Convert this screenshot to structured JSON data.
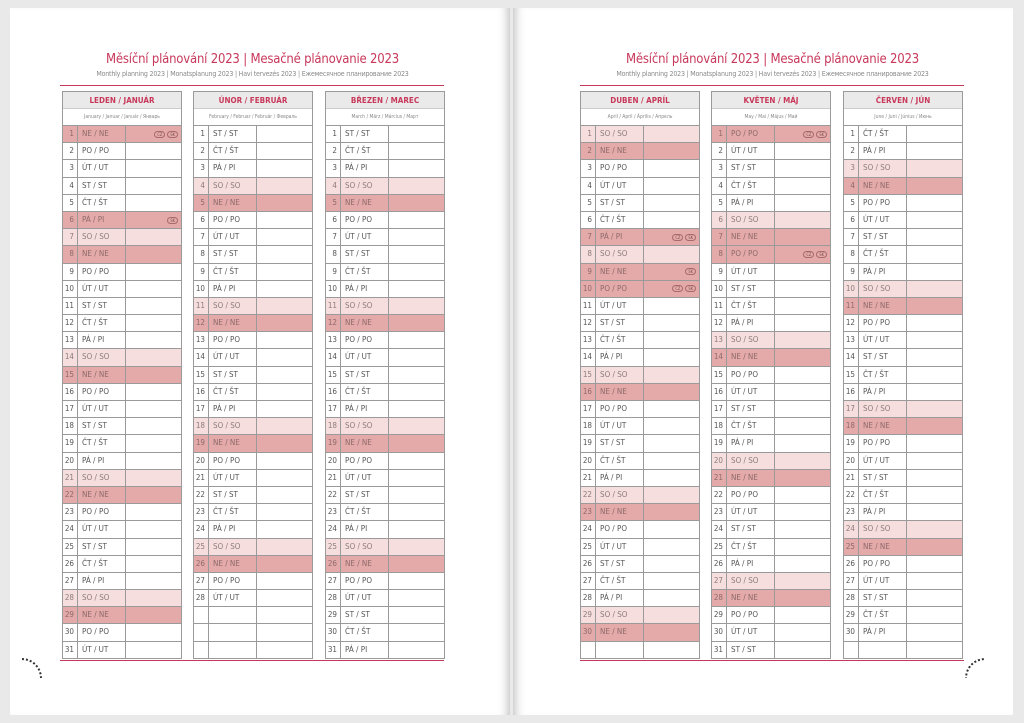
{
  "title": "Měsíční plánování 2023 | Mesačné plánovanie 2023",
  "subtitle": "Monthly planning 2023 | Monatsplanung 2023 | Havi tervezés 2023 | Ежемесячное планирование 2023",
  "colors": {
    "accent": "#c8385a",
    "saturday": "#f6dede",
    "sunday_holiday": "#e4a9a9"
  },
  "months": [
    {
      "name": "LEDEN / JANUÁR",
      "sub": "January / Januar / Január / Январь",
      "rows": [
        [
          1,
          "NE / NE",
          2,
          [
            "CZ",
            "SK"
          ]
        ],
        [
          2,
          "PO / PO",
          0
        ],
        [
          3,
          "ÚT / UT",
          0
        ],
        [
          4,
          "ST / ST",
          0
        ],
        [
          5,
          "ČT / ŠT",
          0
        ],
        [
          6,
          "PÁ / PI",
          2,
          [
            "SK"
          ]
        ],
        [
          7,
          "SO / SO",
          1
        ],
        [
          8,
          "NE / NE",
          2
        ],
        [
          9,
          "PO / PO",
          0
        ],
        [
          10,
          "ÚT / UT",
          0
        ],
        [
          11,
          "ST / ST",
          0
        ],
        [
          12,
          "ČT / ŠT",
          0
        ],
        [
          13,
          "PÁ / PI",
          0
        ],
        [
          14,
          "SO / SO",
          1
        ],
        [
          15,
          "NE / NE",
          2
        ],
        [
          16,
          "PO / PO",
          0
        ],
        [
          17,
          "ÚT / UT",
          0
        ],
        [
          18,
          "ST / ST",
          0
        ],
        [
          19,
          "ČT / ŠT",
          0
        ],
        [
          20,
          "PÁ / PI",
          0
        ],
        [
          21,
          "SO / SO",
          1
        ],
        [
          22,
          "NE / NE",
          2
        ],
        [
          23,
          "PO / PO",
          0
        ],
        [
          24,
          "ÚT / UT",
          0
        ],
        [
          25,
          "ST / ST",
          0
        ],
        [
          26,
          "ČT / ŠT",
          0
        ],
        [
          27,
          "PÁ / PI",
          0
        ],
        [
          28,
          "SO / SO",
          1
        ],
        [
          29,
          "NE / NE",
          2
        ],
        [
          30,
          "PO / PO",
          0
        ],
        [
          31,
          "ÚT / UT",
          0
        ]
      ]
    },
    {
      "name": "ÚNOR / FEBRUÁR",
      "sub": "February / Februar / Február / Февраль",
      "rows": [
        [
          1,
          "ST / ST",
          0
        ],
        [
          2,
          "ČT / ŠT",
          0
        ],
        [
          3,
          "PÁ / PI",
          0
        ],
        [
          4,
          "SO / SO",
          1
        ],
        [
          5,
          "NE / NE",
          2
        ],
        [
          6,
          "PO / PO",
          0
        ],
        [
          7,
          "ÚT / UT",
          0
        ],
        [
          8,
          "ST / ST",
          0
        ],
        [
          9,
          "ČT / ŠT",
          0
        ],
        [
          10,
          "PÁ / PI",
          0
        ],
        [
          11,
          "SO / SO",
          1
        ],
        [
          12,
          "NE / NE",
          2
        ],
        [
          13,
          "PO / PO",
          0
        ],
        [
          14,
          "ÚT / UT",
          0
        ],
        [
          15,
          "ST / ST",
          0
        ],
        [
          16,
          "ČT / ŠT",
          0
        ],
        [
          17,
          "PÁ / PI",
          0
        ],
        [
          18,
          "SO / SO",
          1
        ],
        [
          19,
          "NE / NE",
          2
        ],
        [
          20,
          "PO / PO",
          0
        ],
        [
          21,
          "ÚT / UT",
          0
        ],
        [
          22,
          "ST / ST",
          0
        ],
        [
          23,
          "ČT / ŠT",
          0
        ],
        [
          24,
          "PÁ / PI",
          0
        ],
        [
          25,
          "SO / SO",
          1
        ],
        [
          26,
          "NE / NE",
          2
        ],
        [
          27,
          "PO / PO",
          0
        ],
        [
          28,
          "ÚT / UT",
          0
        ],
        [
          "",
          "",
          0
        ],
        [
          "",
          "",
          0
        ],
        [
          "",
          "",
          0
        ]
      ]
    },
    {
      "name": "BŘEZEN / MAREC",
      "sub": "March / März / Március / Март",
      "rows": [
        [
          1,
          "ST / ST",
          0
        ],
        [
          2,
          "ČT / ŠT",
          0
        ],
        [
          3,
          "PÁ / PI",
          0
        ],
        [
          4,
          "SO / SO",
          1
        ],
        [
          5,
          "NE / NE",
          2
        ],
        [
          6,
          "PO / PO",
          0
        ],
        [
          7,
          "ÚT / UT",
          0
        ],
        [
          8,
          "ST / ST",
          0
        ],
        [
          9,
          "ČT / ŠT",
          0
        ],
        [
          10,
          "PÁ / PI",
          0
        ],
        [
          11,
          "SO / SO",
          1
        ],
        [
          12,
          "NE / NE",
          2
        ],
        [
          13,
          "PO / PO",
          0
        ],
        [
          14,
          "ÚT / UT",
          0
        ],
        [
          15,
          "ST / ST",
          0
        ],
        [
          16,
          "ČT / ŠT",
          0
        ],
        [
          17,
          "PÁ / PI",
          0
        ],
        [
          18,
          "SO / SO",
          1
        ],
        [
          19,
          "NE / NE",
          2
        ],
        [
          20,
          "PO / PO",
          0
        ],
        [
          21,
          "ÚT / UT",
          0
        ],
        [
          22,
          "ST / ST",
          0
        ],
        [
          23,
          "ČT / ŠT",
          0
        ],
        [
          24,
          "PÁ / PI",
          0
        ],
        [
          25,
          "SO / SO",
          1
        ],
        [
          26,
          "NE / NE",
          2
        ],
        [
          27,
          "PO / PO",
          0
        ],
        [
          28,
          "ÚT / UT",
          0
        ],
        [
          29,
          "ST / ST",
          0
        ],
        [
          30,
          "ČT / ŠT",
          0
        ],
        [
          31,
          "PÁ / PI",
          0
        ]
      ]
    },
    {
      "name": "DUBEN / APRÍL",
      "sub": "April / April / Április / Апрель",
      "rows": [
        [
          1,
          "SO / SO",
          1
        ],
        [
          2,
          "NE / NE",
          2
        ],
        [
          3,
          "PO / PO",
          0
        ],
        [
          4,
          "ÚT / UT",
          0
        ],
        [
          5,
          "ST / ST",
          0
        ],
        [
          6,
          "ČT / ŠT",
          0
        ],
        [
          7,
          "PÁ / PI",
          2,
          [
            "CZ",
            "SK"
          ]
        ],
        [
          8,
          "SO / SO",
          1
        ],
        [
          9,
          "NE / NE",
          2,
          [
            "SK"
          ]
        ],
        [
          10,
          "PO / PO",
          2,
          [
            "CZ",
            "SK"
          ]
        ],
        [
          11,
          "ÚT / UT",
          0
        ],
        [
          12,
          "ST / ST",
          0
        ],
        [
          13,
          "ČT / ŠT",
          0
        ],
        [
          14,
          "PÁ / PI",
          0
        ],
        [
          15,
          "SO / SO",
          1
        ],
        [
          16,
          "NE / NE",
          2
        ],
        [
          17,
          "PO / PO",
          0
        ],
        [
          18,
          "ÚT / UT",
          0
        ],
        [
          19,
          "ST / ST",
          0
        ],
        [
          20,
          "ČT / ŠT",
          0
        ],
        [
          21,
          "PÁ / PI",
          0
        ],
        [
          22,
          "SO / SO",
          1
        ],
        [
          23,
          "NE / NE",
          2
        ],
        [
          24,
          "PO / PO",
          0
        ],
        [
          25,
          "ÚT / UT",
          0
        ],
        [
          26,
          "ST / ST",
          0
        ],
        [
          27,
          "ČT / ŠT",
          0
        ],
        [
          28,
          "PÁ / PI",
          0
        ],
        [
          29,
          "SO / SO",
          1
        ],
        [
          30,
          "NE / NE",
          2
        ],
        [
          "",
          "",
          0
        ]
      ]
    },
    {
      "name": "KVĚTEN / MÁJ",
      "sub": "May / Mai / Május / Май",
      "rows": [
        [
          1,
          "PO / PO",
          2,
          [
            "CZ",
            "SK"
          ]
        ],
        [
          2,
          "ÚT / UT",
          0
        ],
        [
          3,
          "ST / ST",
          0
        ],
        [
          4,
          "ČT / ŠT",
          0
        ],
        [
          5,
          "PÁ / PI",
          0
        ],
        [
          6,
          "SO / SO",
          1
        ],
        [
          7,
          "NE / NE",
          2
        ],
        [
          8,
          "PO / PO",
          2,
          [
            "CZ",
            "SK"
          ]
        ],
        [
          9,
          "ÚT / UT",
          0
        ],
        [
          10,
          "ST / ST",
          0
        ],
        [
          11,
          "ČT / ŠT",
          0
        ],
        [
          12,
          "PÁ / PI",
          0
        ],
        [
          13,
          "SO / SO",
          1
        ],
        [
          14,
          "NE / NE",
          2
        ],
        [
          15,
          "PO / PO",
          0
        ],
        [
          16,
          "ÚT / UT",
          0
        ],
        [
          17,
          "ST / ST",
          0
        ],
        [
          18,
          "ČT / ŠT",
          0
        ],
        [
          19,
          "PÁ / PI",
          0
        ],
        [
          20,
          "SO / SO",
          1
        ],
        [
          21,
          "NE / NE",
          2
        ],
        [
          22,
          "PO / PO",
          0
        ],
        [
          23,
          "ÚT / UT",
          0
        ],
        [
          24,
          "ST / ST",
          0
        ],
        [
          25,
          "ČT / ŠT",
          0
        ],
        [
          26,
          "PÁ / PI",
          0
        ],
        [
          27,
          "SO / SO",
          1
        ],
        [
          28,
          "NE / NE",
          2
        ],
        [
          29,
          "PO / PO",
          0
        ],
        [
          30,
          "ÚT / UT",
          0
        ],
        [
          31,
          "ST / ST",
          0
        ]
      ]
    },
    {
      "name": "ČERVEN / JÚN",
      "sub": "June / Juni / Június / Июнь",
      "rows": [
        [
          1,
          "ČT / ŠT",
          0
        ],
        [
          2,
          "PÁ / PI",
          0
        ],
        [
          3,
          "SO / SO",
          1
        ],
        [
          4,
          "NE / NE",
          2
        ],
        [
          5,
          "PO / PO",
          0
        ],
        [
          6,
          "ÚT / UT",
          0
        ],
        [
          7,
          "ST / ST",
          0
        ],
        [
          8,
          "ČT / ŠT",
          0
        ],
        [
          9,
          "PÁ / PI",
          0
        ],
        [
          10,
          "SO / SO",
          1
        ],
        [
          11,
          "NE / NE",
          2
        ],
        [
          12,
          "PO / PO",
          0
        ],
        [
          13,
          "ÚT / UT",
          0
        ],
        [
          14,
          "ST / ST",
          0
        ],
        [
          15,
          "ČT / ŠT",
          0
        ],
        [
          16,
          "PÁ / PI",
          0
        ],
        [
          17,
          "SO / SO",
          1
        ],
        [
          18,
          "NE / NE",
          2
        ],
        [
          19,
          "PO / PO",
          0
        ],
        [
          20,
          "ÚT / UT",
          0
        ],
        [
          21,
          "ST / ST",
          0
        ],
        [
          22,
          "ČT / ŠT",
          0
        ],
        [
          23,
          "PÁ / PI",
          0
        ],
        [
          24,
          "SO / SO",
          1
        ],
        [
          25,
          "NE / NE",
          2
        ],
        [
          26,
          "PO / PO",
          0
        ],
        [
          27,
          "ÚT / UT",
          0
        ],
        [
          28,
          "ST / ST",
          0
        ],
        [
          29,
          "ČT / ŠT",
          0
        ],
        [
          30,
          "PÁ / PI",
          0
        ],
        [
          "",
          "",
          0
        ]
      ]
    }
  ]
}
